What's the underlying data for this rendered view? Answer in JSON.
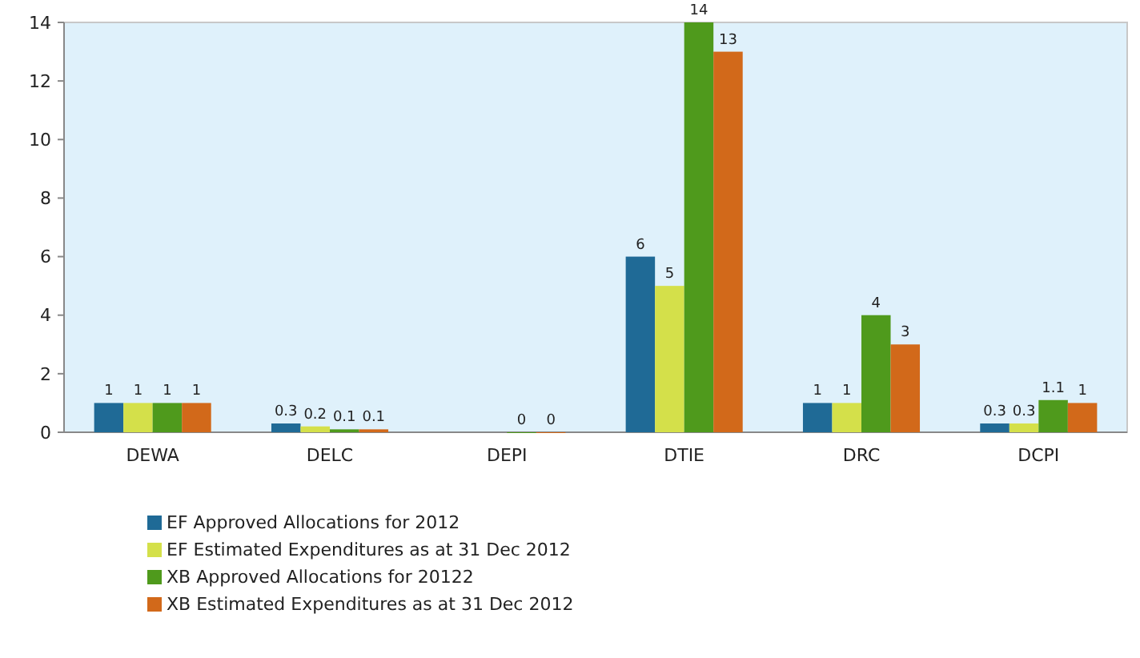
{
  "chart_data": {
    "type": "bar",
    "categories": [
      "DEWA",
      "DELC",
      "DEPI",
      "DTIE",
      "DRC",
      "DCPI"
    ],
    "series": [
      {
        "name": "EF Approved Allocations for 2012",
        "color": "#1f6a96",
        "values": [
          1,
          0.3,
          null,
          6,
          1,
          0.3
        ]
      },
      {
        "name": "EF Estimated Expenditures as at 31 Dec 2012",
        "color": "#d4e04a",
        "values": [
          1,
          0.2,
          null,
          5,
          1,
          0.3
        ]
      },
      {
        "name": "XB Approved Allocations for 20122",
        "color": "#4f9a1c",
        "values": [
          1,
          0.1,
          0,
          14,
          4,
          1.1
        ]
      },
      {
        "name": "XB Estimated Expenditures as at 31 Dec 2012",
        "color": "#d2691a",
        "values": [
          1,
          0.1,
          0,
          13,
          3,
          1
        ]
      }
    ],
    "ylim": [
      0,
      14
    ],
    "yticks": [
      0,
      2,
      4,
      6,
      8,
      10,
      12,
      14
    ],
    "grid": false,
    "legend": "bottom",
    "data_labels": true
  }
}
